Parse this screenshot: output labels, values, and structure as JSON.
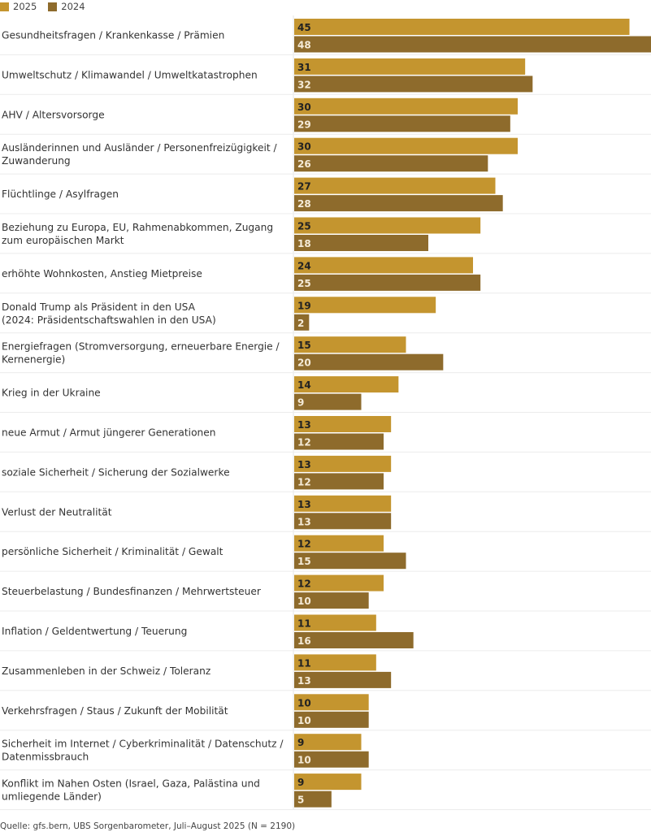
{
  "chart_data": {
    "type": "bar",
    "orientation": "horizontal",
    "categories": [
      "Gesundheitsfragen / Krankenkasse / Prämien",
      "Umweltschutz / Klimawandel / Umweltkatastrophen",
      "AHV / Altersvorsorge",
      "Ausländerinnen und Ausländer / Personenfreizügigkeit / Zuwanderung",
      "Flüchtlinge / Asylfragen",
      "Beziehung zu Europa, EU, Rahmenabkommen, Zugang zum europäischen Markt",
      "erhöhte Wohnkosten, Anstieg Mietpreise",
      "Donald Trump als Präsident in den USA (2024: Präsidentschaftswahlen in den USA)",
      "Energiefragen (Stromversorgung, erneuerbare Energie / Kernenergie)",
      "Krieg in der Ukraine",
      "neue Armut / Armut jüngerer Generationen",
      "soziale Sicherheit / Sicherung der Sozialwerke",
      "Verlust der Neutralität",
      "persönliche Sicherheit / Kriminalität / Gewalt",
      "Steuerbelastung / Bundesfinanzen / Mehrwertsteuer",
      "Inflation / Geldentwertung / Teuerung",
      "Zusammenleben in der Schweiz / Toleranz",
      "Verkehrsfragen / Staus / Zukunft der Mobilität",
      "Sicherheit im Internet / Cyberkriminalität / Datenschutz / Datenmissbrauch",
      "Konflikt im Nahen Osten (Israel, Gaza, Palästina und umliegende Länder)"
    ],
    "label_lines": [
      [
        "Gesundheitsfragen / Krankenkasse / Prämien"
      ],
      [
        "Umweltschutz / Klimawandel / Umweltkatastrophen"
      ],
      [
        "AHV / Altersvorsorge"
      ],
      [
        "Ausländerinnen und Ausländer / Personenfreizügigkeit /",
        "Zuwanderung"
      ],
      [
        "Flüchtlinge / Asylfragen"
      ],
      [
        "Beziehung zu Europa, EU, Rahmenabkommen, Zugang",
        "zum europäischen Markt"
      ],
      [
        "erhöhte Wohnkosten, Anstieg Mietpreise"
      ],
      [
        "Donald Trump als Präsident in den USA",
        "(2024: Präsidentschaftswahlen in den USA)"
      ],
      [
        "Energiefragen (Stromversorgung, erneuerbare Energie /",
        "Kernenergie)"
      ],
      [
        "Krieg in der Ukraine"
      ],
      [
        "neue Armut / Armut jüngerer Generationen"
      ],
      [
        "soziale Sicherheit / Sicherung der Sozialwerke"
      ],
      [
        "Verlust der Neutralität"
      ],
      [
        "persönliche Sicherheit / Kriminalität / Gewalt"
      ],
      [
        "Steuerbelastung / Bundesfinanzen / Mehrwertsteuer"
      ],
      [
        "Inflation / Geldentwertung / Teuerung"
      ],
      [
        "Zusammenleben in der Schweiz / Toleranz"
      ],
      [
        "Verkehrsfragen / Staus / Zukunft der Mobilität"
      ],
      [
        "Sicherheit im Internet / Cyberkriminalität / Datenschutz /",
        "Datenmissbrauch"
      ],
      [
        "Konflikt im Nahen Osten (Israel, Gaza, Palästina und",
        "umliegende Länder)"
      ]
    ],
    "series": [
      {
        "name": "2025",
        "color": "#C4952F",
        "label_color": "#222222",
        "values": [
          45,
          31,
          30,
          30,
          27,
          25,
          24,
          19,
          15,
          14,
          13,
          13,
          13,
          12,
          12,
          11,
          11,
          10,
          9,
          9
        ]
      },
      {
        "name": "2024",
        "color": "#8E6B2C",
        "label_color": "#F5EBD8",
        "values": [
          48,
          32,
          29,
          26,
          28,
          18,
          25,
          2,
          20,
          9,
          12,
          12,
          13,
          15,
          10,
          16,
          13,
          10,
          10,
          5
        ]
      }
    ],
    "xlim": [
      0,
      48
    ],
    "grid": false,
    "legend_position": "top-left",
    "source": "Quelle: gfs.bern, UBS Sorgenbarometer, Juli–August 2025 (N = 2190)"
  }
}
